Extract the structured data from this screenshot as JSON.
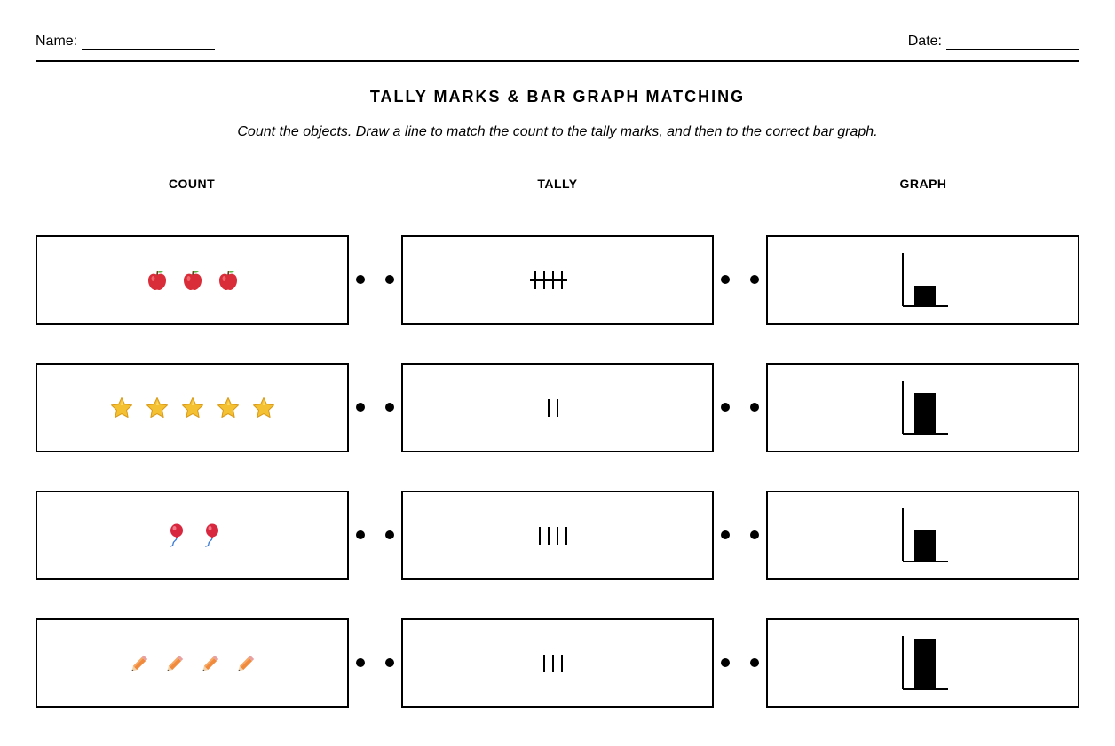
{
  "header": {
    "name_label": "Name:",
    "date_label": "Date:"
  },
  "title": "TALLY MARKS & BAR GRAPH MATCHING",
  "instructions": "Count the objects. Draw a line to match the count to the tally marks, and then to the correct bar graph.",
  "columns": {
    "count": "COUNT",
    "tally": "TALLY",
    "graph": "GRAPH"
  },
  "rows": [
    {
      "object_icon": "apple-icon",
      "object_count": 3,
      "tally_count": 5,
      "graph_value": 0.4
    },
    {
      "object_icon": "star-icon",
      "object_count": 5,
      "tally_count": 2,
      "graph_value": 0.8
    },
    {
      "object_icon": "balloon-icon",
      "object_count": 2,
      "tally_count": 4,
      "graph_value": 0.6
    },
    {
      "object_icon": "pencil-icon",
      "object_count": 4,
      "tally_count": 3,
      "graph_value": 1.0
    }
  ],
  "colors": {
    "apple": "#d92e3a",
    "star": "#f3c132",
    "balloon": "#d8283f",
    "balloon_string": "#3a7bd5",
    "pencil": "#f08a3c"
  }
}
